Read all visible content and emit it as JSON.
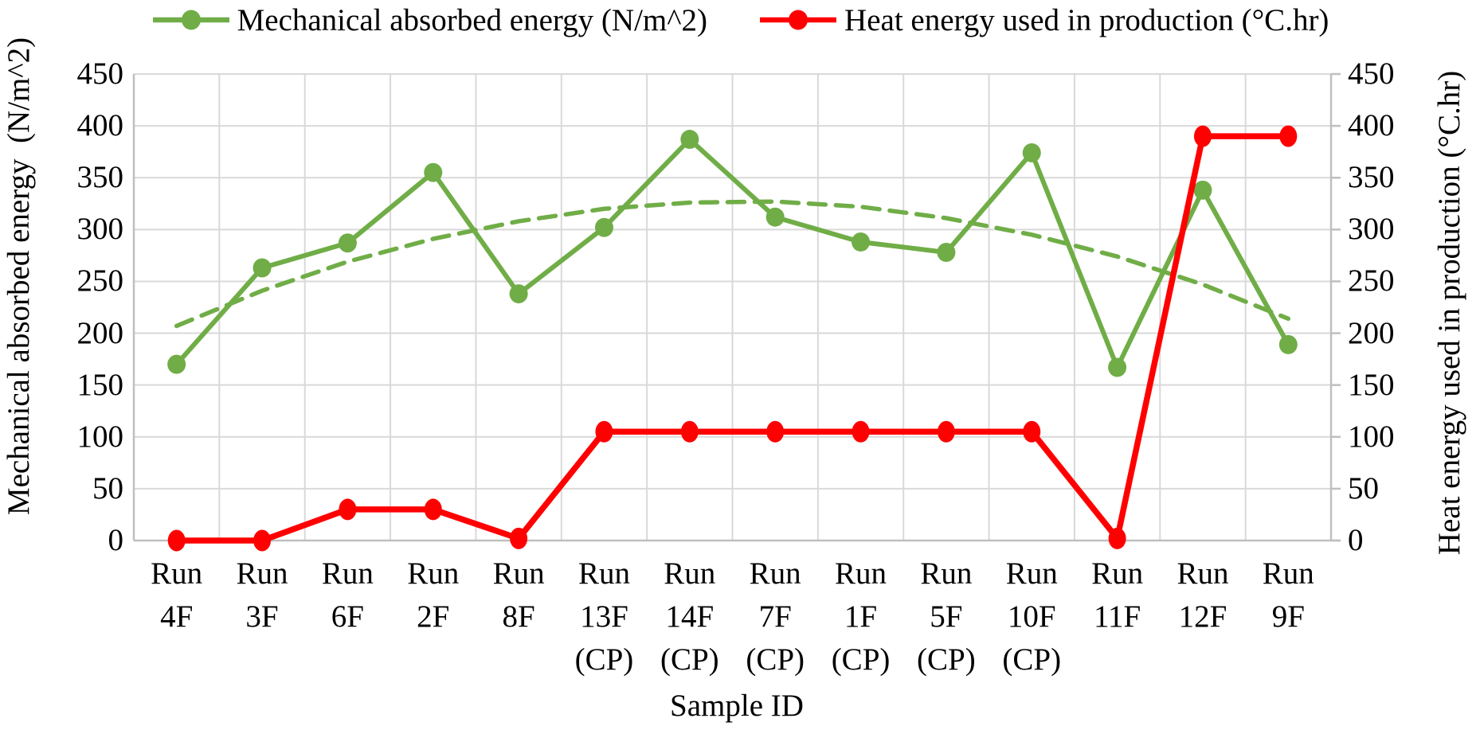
{
  "figure": {
    "background": "#FFFFFF"
  },
  "legend": {
    "items": [
      {
        "label": "Mechanical absorbed energy (N/m^2)",
        "color": "#70AD47"
      },
      {
        "label": "Heat energy used in production (°C.hr)",
        "color": "#FF0000"
      }
    ]
  },
  "axes": {
    "left_title": "Mechanical absorbed energy  (N/m^2)",
    "right_title": "Heat energy used in production (°C.hr)",
    "x_title": "Sample ID",
    "tick_values": [
      450,
      400,
      350,
      300,
      250,
      200,
      150,
      100,
      50,
      0
    ]
  },
  "chart_data": {
    "type": "line",
    "title": "",
    "xlabel": "Sample ID",
    "ylabel_left": "Mechanical absorbed energy (N/m^2)",
    "ylabel_right": "Heat energy used in production (°C.hr)",
    "ylim": [
      0,
      450
    ],
    "y_step": 50,
    "grid": true,
    "legend_position": "top",
    "categories": [
      "Run 4F",
      "Run 3F",
      "Run 6F",
      "Run 2F",
      "Run 8F",
      "Run 13F (CP)",
      "Run 14F (CP)",
      "Run 7F (CP)",
      "Run 1F (CP)",
      "Run 5F (CP)",
      "Run 10F (CP)",
      "Run 11F",
      "Run 12F",
      "Run 9F"
    ],
    "category_label_lines": [
      [
        "Run",
        "4F"
      ],
      [
        "Run",
        "3F"
      ],
      [
        "Run",
        "6F"
      ],
      [
        "Run",
        "2F"
      ],
      [
        "Run",
        "8F"
      ],
      [
        "Run",
        "13F",
        "(CP)"
      ],
      [
        "Run",
        "14F",
        "(CP)"
      ],
      [
        "Run",
        "7F",
        "(CP)"
      ],
      [
        "Run",
        "1F",
        "(CP)"
      ],
      [
        "Run",
        "5F",
        "(CP)"
      ],
      [
        "Run",
        "10F",
        "(CP)"
      ],
      [
        "Run",
        "11F"
      ],
      [
        "Run",
        "12F"
      ],
      [
        "Run",
        "9F"
      ]
    ],
    "series": [
      {
        "name": "Mechanical absorbed energy (N/m^2)",
        "axis": "left",
        "color": "#70AD47",
        "style": "solid-markers",
        "values": [
          170,
          263,
          287,
          355,
          238,
          302,
          387,
          312,
          288,
          278,
          374,
          167,
          338,
          189
        ]
      },
      {
        "name": "Heat energy used in production (°C.hr)",
        "axis": "right",
        "color": "#FF0000",
        "style": "solid-markers",
        "values": [
          0,
          0,
          30,
          30,
          2,
          105,
          105,
          105,
          105,
          105,
          105,
          2,
          390,
          390
        ]
      },
      {
        "name": "Polynomial trendline (Mechanical absorbed energy)",
        "axis": "left",
        "color": "#70AD47",
        "style": "dashed",
        "values": [
          207,
          241,
          269,
          291,
          308,
          320,
          326,
          327,
          322,
          311,
          295,
          274,
          247,
          214
        ]
      }
    ]
  },
  "colors": {
    "green": "#70AD47",
    "red": "#FF0000",
    "gridline": "#D9D9D9",
    "axis_line": "#BFBFBF",
    "text": "#000000"
  }
}
